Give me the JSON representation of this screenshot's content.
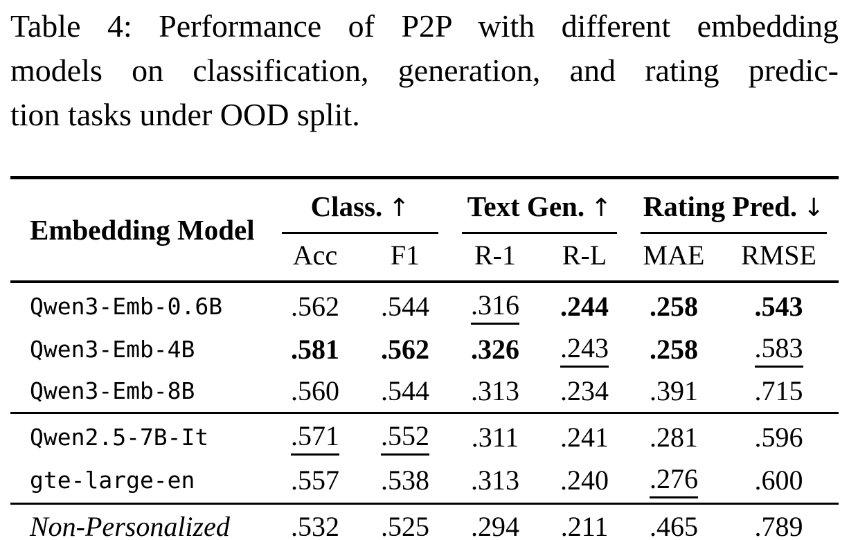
{
  "colors": {
    "background": "#ffffff",
    "text": "#000000",
    "rule": "#000000"
  },
  "caption": {
    "lines": [
      "Table 4: Performance of P2P with different embedding",
      "models on classification, generation, and rating predic-",
      "tion tasks under OOD split."
    ]
  },
  "table": {
    "corner_header": "Embedding Model",
    "column_groups": [
      {
        "label": "Class.",
        "arrow": "↑",
        "direction": "higher-is-better"
      },
      {
        "label": "Text Gen.",
        "arrow": "↑",
        "direction": "higher-is-better"
      },
      {
        "label": "Rating Pred.",
        "arrow": "↓",
        "direction": "lower-is-better"
      }
    ],
    "subheaders": [
      "Acc",
      "F1",
      "R-1",
      "R-L",
      "MAE",
      "RMSE"
    ],
    "rows": [
      {
        "model": "Qwen3-Emb-0.6B",
        "cells": [
          {
            "v": ".562",
            "em": "none"
          },
          {
            "v": ".544",
            "em": "none"
          },
          {
            "v": ".316",
            "em": "underline"
          },
          {
            "v": ".244",
            "em": "bold"
          },
          {
            "v": ".258",
            "em": "bold"
          },
          {
            "v": ".543",
            "em": "bold"
          }
        ]
      },
      {
        "model": "Qwen3-Emb-4B",
        "cells": [
          {
            "v": ".581",
            "em": "bold"
          },
          {
            "v": ".562",
            "em": "bold"
          },
          {
            "v": ".326",
            "em": "bold"
          },
          {
            "v": ".243",
            "em": "underline"
          },
          {
            "v": ".258",
            "em": "bold"
          },
          {
            "v": ".583",
            "em": "underline"
          }
        ]
      },
      {
        "model": "Qwen3-Emb-8B",
        "cells": [
          {
            "v": ".560",
            "em": "none"
          },
          {
            "v": ".544",
            "em": "none"
          },
          {
            "v": ".313",
            "em": "none"
          },
          {
            "v": ".234",
            "em": "none"
          },
          {
            "v": ".391",
            "em": "none"
          },
          {
            "v": ".715",
            "em": "none"
          }
        ]
      },
      {
        "model": "Qwen2.5-7B-It",
        "cells": [
          {
            "v": ".571",
            "em": "underline"
          },
          {
            "v": ".552",
            "em": "underline"
          },
          {
            "v": ".311",
            "em": "none"
          },
          {
            "v": ".241",
            "em": "none"
          },
          {
            "v": ".281",
            "em": "none"
          },
          {
            "v": ".596",
            "em": "none"
          }
        ]
      },
      {
        "model": "gte-large-en",
        "cells": [
          {
            "v": ".557",
            "em": "none"
          },
          {
            "v": ".538",
            "em": "none"
          },
          {
            "v": ".313",
            "em": "none"
          },
          {
            "v": ".240",
            "em": "none"
          },
          {
            "v": ".276",
            "em": "underline"
          },
          {
            "v": ".600",
            "em": "none"
          }
        ]
      },
      {
        "model": "Non-Personalized",
        "italic": true,
        "cells": [
          {
            "v": ".532",
            "em": "none"
          },
          {
            "v": ".525",
            "em": "none"
          },
          {
            "v": ".294",
            "em": "none"
          },
          {
            "v": ".211",
            "em": "none"
          },
          {
            "v": ".465",
            "em": "none"
          },
          {
            "v": ".789",
            "em": "none"
          }
        ]
      }
    ]
  }
}
